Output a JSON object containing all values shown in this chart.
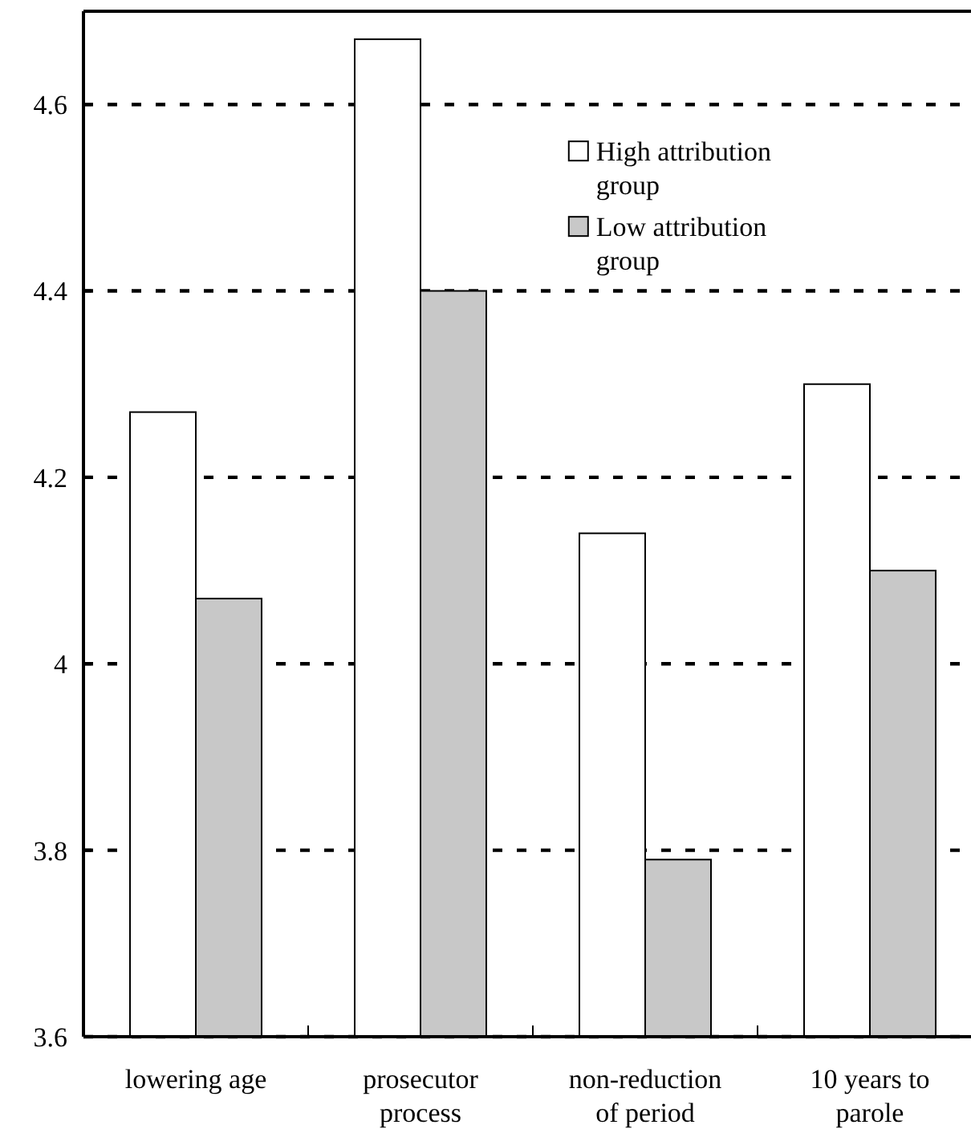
{
  "chart_data": {
    "type": "bar",
    "categories": [
      "lowering age",
      "prosecutor\nprocess",
      "non-reduction\nof period",
      "10 years to\nparole"
    ],
    "series": [
      {
        "name": "High attribution\ngroup",
        "color": "#ffffff",
        "values": [
          4.27,
          4.67,
          4.14,
          4.3
        ]
      },
      {
        "name": "Low attribution\ngroup",
        "color": "#c8c8c8",
        "values": [
          4.07,
          4.4,
          3.79,
          4.1
        ]
      }
    ],
    "ylim": [
      3.6,
      4.7
    ],
    "yticks": [
      3.6,
      3.8,
      4,
      4.2,
      4.4,
      4.6
    ],
    "grid": "y",
    "legend": "top right"
  }
}
